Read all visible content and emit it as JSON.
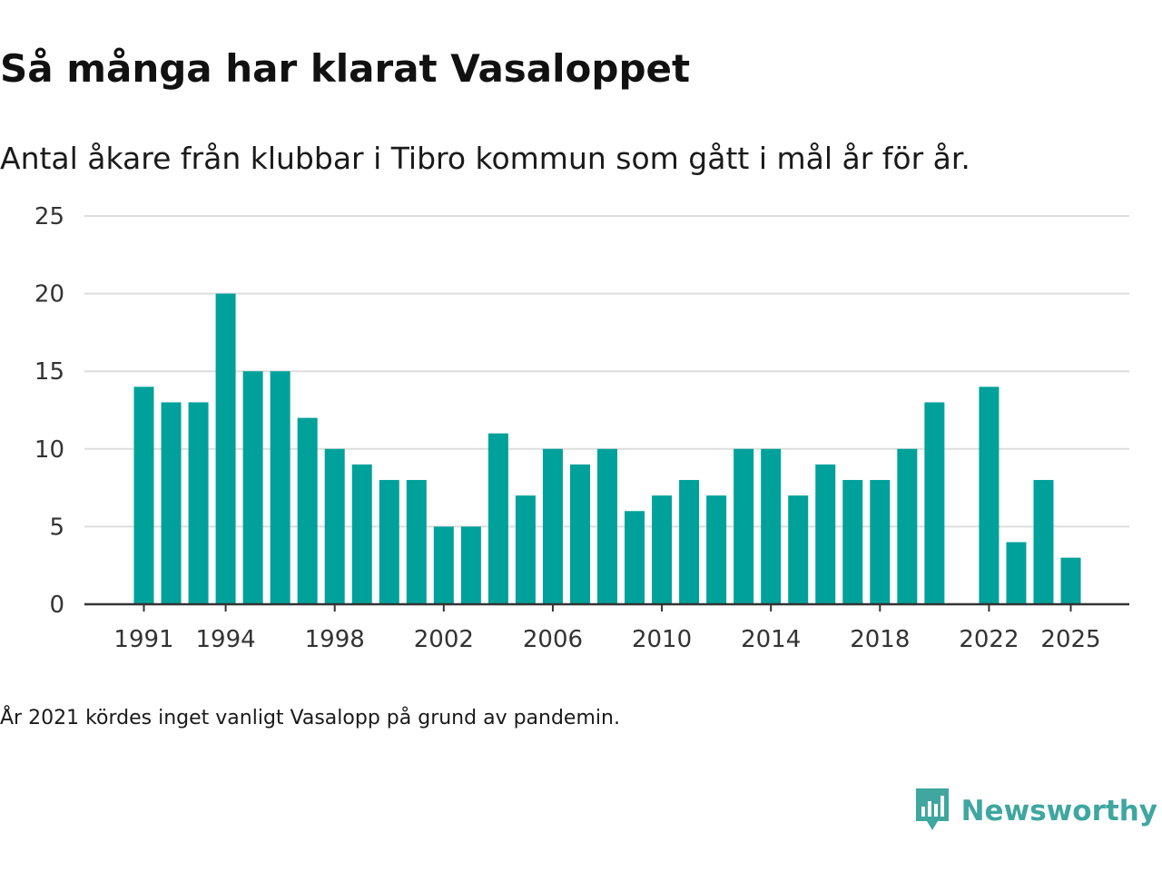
{
  "header": {
    "title": "Så många har klarat Vasaloppet",
    "subtitle": "Antal åkare från klubbar i Tibro kommun som gått i mål år för år."
  },
  "footer": {
    "note": "År 2021 kördes inget vanligt Vasalopp på grund av pandemin.",
    "brand": "Newsworthy"
  },
  "colors": {
    "bar": "#00a19a",
    "brand": "#3fa6a0",
    "grid": "#dddddd",
    "axis": "#333333"
  },
  "chart_data": {
    "type": "bar",
    "title": "Så många har klarat Vasaloppet",
    "subtitle": "Antal åkare från klubbar i Tibro kommun som gått i mål år för år.",
    "xlabel": "",
    "ylabel": "",
    "ylim": [
      0,
      25
    ],
    "yticks": [
      0,
      5,
      10,
      15,
      20,
      25
    ],
    "xticks": [
      1991,
      1994,
      1998,
      2002,
      2006,
      2010,
      2014,
      2018,
      2022,
      2025
    ],
    "grid": true,
    "categories": [
      1991,
      1992,
      1993,
      1994,
      1995,
      1996,
      1997,
      1998,
      1999,
      2000,
      2001,
      2002,
      2003,
      2004,
      2005,
      2006,
      2007,
      2008,
      2009,
      2010,
      2011,
      2012,
      2013,
      2014,
      2015,
      2016,
      2017,
      2018,
      2019,
      2020,
      2021,
      2022,
      2023,
      2024,
      2025
    ],
    "values": [
      14,
      13,
      13,
      20,
      15,
      15,
      12,
      10,
      9,
      8,
      8,
      5,
      5,
      11,
      7,
      10,
      9,
      10,
      6,
      7,
      8,
      7,
      10,
      10,
      7,
      9,
      8,
      8,
      10,
      13,
      null,
      14,
      4,
      8,
      3
    ]
  }
}
